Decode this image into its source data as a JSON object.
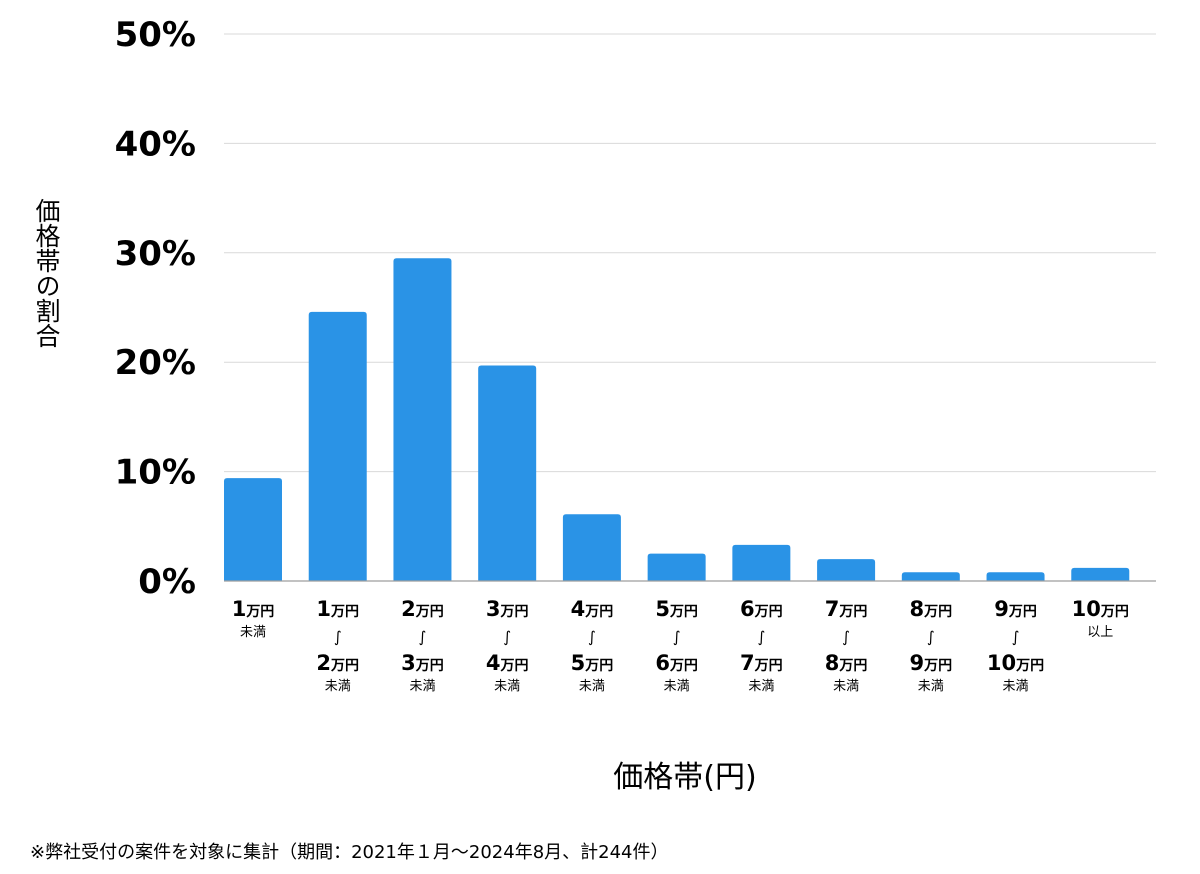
{
  "chart_data": {
    "type": "bar",
    "title": "",
    "xlabel": "価格帯(円)",
    "ylabel": "価格帯の割合",
    "ylim": [
      0,
      50
    ],
    "yticks": [
      "0%",
      "10%",
      "20%",
      "30%",
      "40%",
      "50%"
    ],
    "grid": true,
    "bar_color": "#2a93e6",
    "categories": [
      {
        "from": "1",
        "unit": "万円",
        "to": "",
        "to_unit": "",
        "note": "未満"
      },
      {
        "from": "1",
        "unit": "万円",
        "to": "2",
        "to_unit": "万円",
        "note": "未満"
      },
      {
        "from": "2",
        "unit": "万円",
        "to": "3",
        "to_unit": "万円",
        "note": "未満"
      },
      {
        "from": "3",
        "unit": "万円",
        "to": "4",
        "to_unit": "万円",
        "note": "未満"
      },
      {
        "from": "4",
        "unit": "万円",
        "to": "5",
        "to_unit": "万円",
        "note": "未満"
      },
      {
        "from": "5",
        "unit": "万円",
        "to": "6",
        "to_unit": "万円",
        "note": "未満"
      },
      {
        "from": "6",
        "unit": "万円",
        "to": "7",
        "to_unit": "万円",
        "note": "未満"
      },
      {
        "from": "7",
        "unit": "万円",
        "to": "8",
        "to_unit": "万円",
        "note": "未満"
      },
      {
        "from": "8",
        "unit": "万円",
        "to": "9",
        "to_unit": "万円",
        "note": "未満"
      },
      {
        "from": "9",
        "unit": "万円",
        "to": "10",
        "to_unit": "万円",
        "note": "未満"
      },
      {
        "from": "10",
        "unit": "万円",
        "to": "",
        "to_unit": "",
        "note": "以上"
      }
    ],
    "range_separator": "∫",
    "values": [
      9.4,
      24.6,
      29.5,
      19.7,
      6.1,
      2.5,
      3.3,
      2.0,
      0.8,
      0.8,
      1.2
    ]
  },
  "footnote": "※弊社受付の案件を対象に集計（期間：2021年１月〜2024年8月、計244件）"
}
